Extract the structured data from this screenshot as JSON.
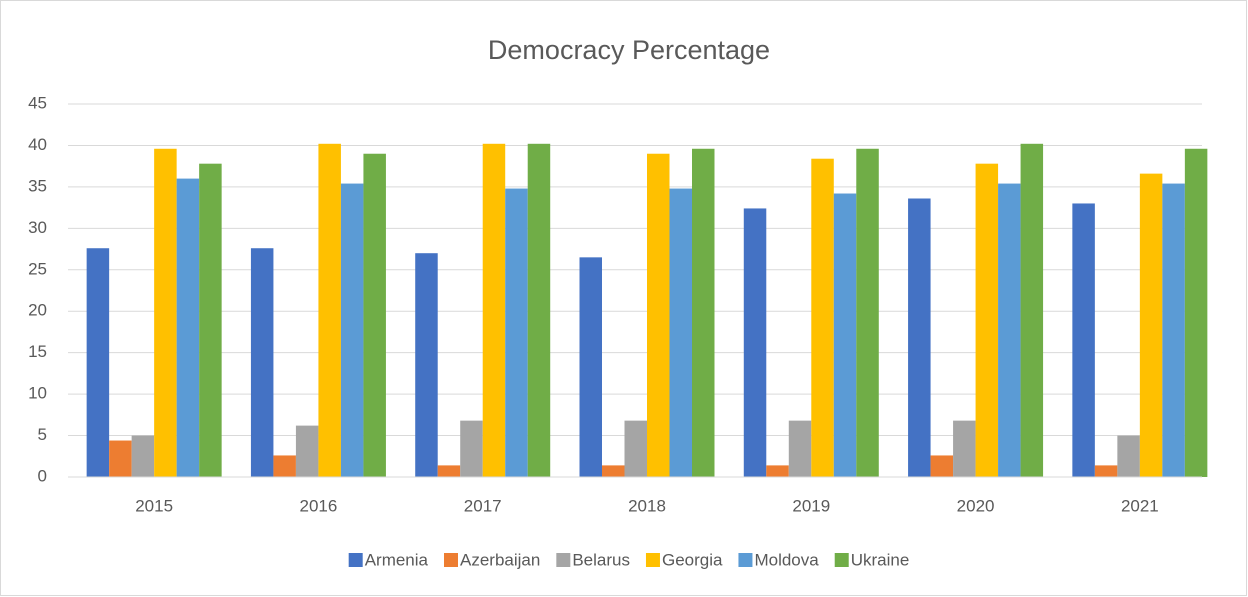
{
  "chart_data": {
    "type": "bar",
    "title": "Democracy Percentage",
    "categories": [
      "2015",
      "2016",
      "2017",
      "2018",
      "2019",
      "2020",
      "2021"
    ],
    "series": [
      {
        "name": "Armenia",
        "color": "#4472c4",
        "values": [
          27.6,
          27.6,
          27.0,
          26.5,
          32.4,
          33.6,
          33.0
        ]
      },
      {
        "name": "Azerbaijan",
        "color": "#ed7d31",
        "values": [
          4.4,
          2.6,
          1.4,
          1.4,
          1.4,
          2.6,
          1.4
        ]
      },
      {
        "name": "Belarus",
        "color": "#a5a5a5",
        "values": [
          5.0,
          6.2,
          6.8,
          6.8,
          6.8,
          6.8,
          5.0
        ]
      },
      {
        "name": "Georgia",
        "color": "#ffc000",
        "values": [
          39.6,
          40.2,
          40.2,
          39.0,
          38.4,
          37.8,
          36.6
        ]
      },
      {
        "name": "Moldova",
        "color": "#5b9bd5",
        "values": [
          36.0,
          35.4,
          34.8,
          34.8,
          34.2,
          35.4,
          35.4
        ]
      },
      {
        "name": "Ukraine",
        "color": "#70ad47",
        "values": [
          37.8,
          39.0,
          40.2,
          39.6,
          39.6,
          40.2,
          39.6
        ]
      }
    ],
    "ylim": [
      0,
      45
    ],
    "yticks": [
      0,
      5,
      10,
      15,
      20,
      25,
      30,
      35,
      40,
      45
    ],
    "grid": true,
    "legend": "bottom"
  }
}
